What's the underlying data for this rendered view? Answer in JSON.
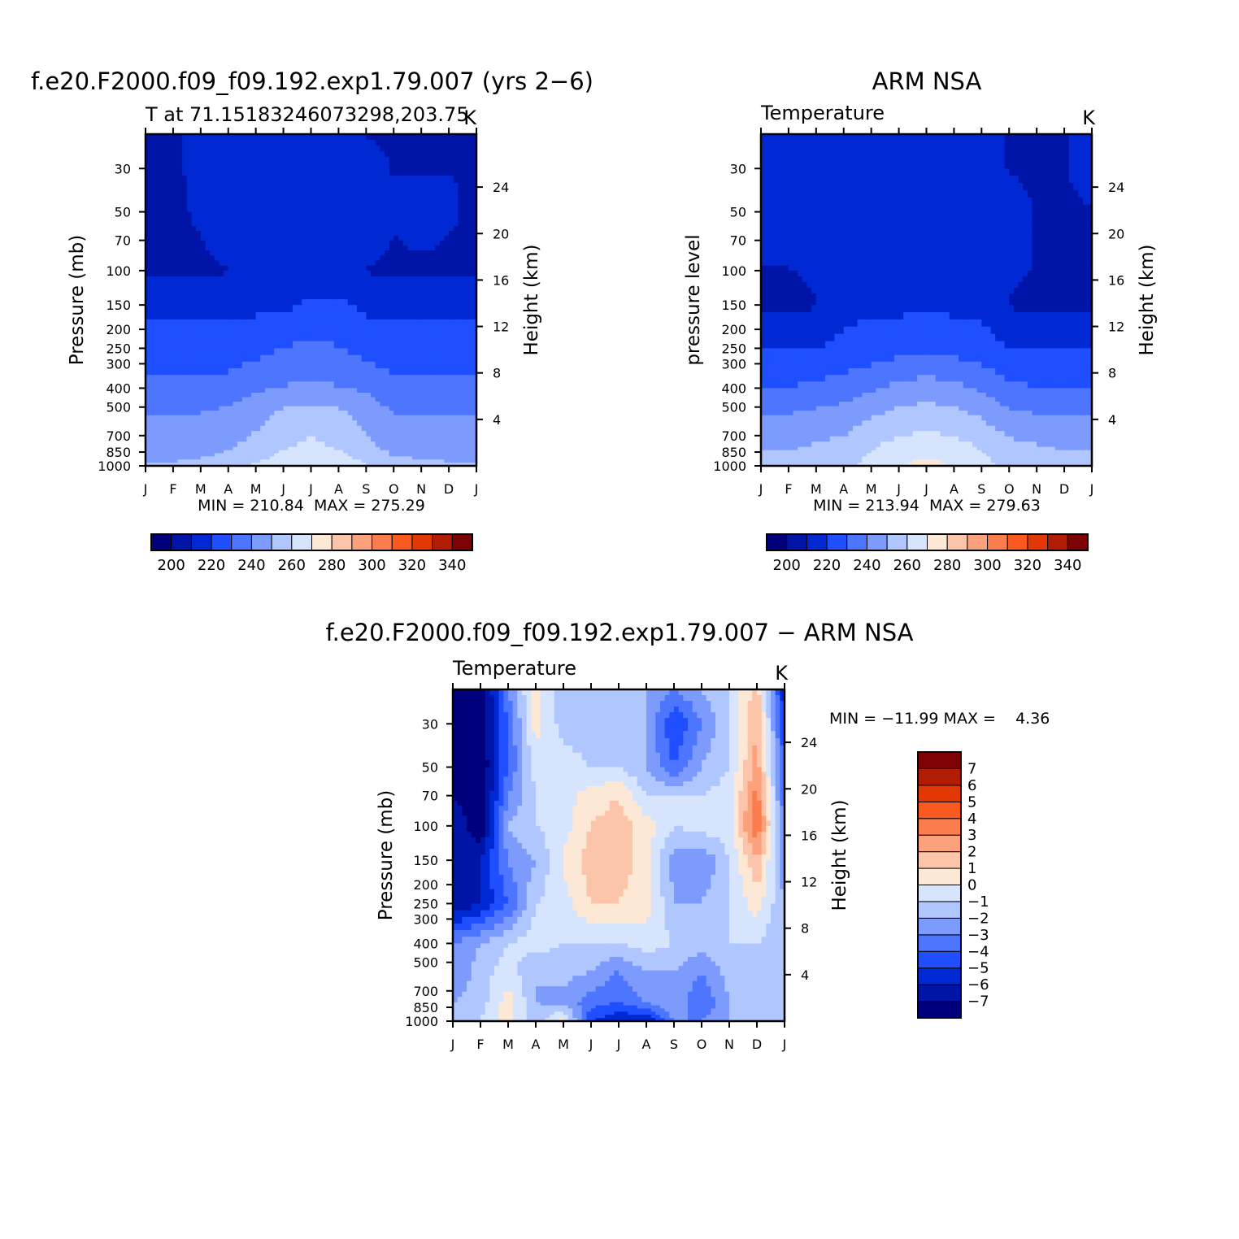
{
  "chart_data": [
    {
      "type": "heatmap",
      "title": "f.e20.F2000.f09_f09.192.exp1.79.007 (yrs 2−6)",
      "subtitle": "T at 71.15183246073298,203.75",
      "units": "K",
      "xlabel": "",
      "ylabel": "Pressure (mb)",
      "right_label": "Height (km)",
      "x_ticks": [
        "J",
        "F",
        "M",
        "A",
        "M",
        "J",
        "J",
        "A",
        "S",
        "O",
        "N",
        "D",
        "J"
      ],
      "y_ticks": [
        "30",
        "50",
        "70",
        "100",
        "150",
        "200",
        "250",
        "300",
        "400",
        "500",
        "700",
        "850",
        "1000"
      ],
      "right_ticks": [
        "24",
        "20",
        "16",
        "12",
        "8",
        "4"
      ],
      "ylim": [
        1000,
        20
      ],
      "y_scale": "log",
      "stats": "MIN = 210.84  MAX = 275.29",
      "colorbar": {
        "orientation": "horizontal",
        "labels": [
          "200",
          "220",
          "240",
          "260",
          "280",
          "300",
          "320",
          "340"
        ],
        "levels": [
          195,
          200,
          205,
          210,
          215,
          220,
          225,
          230,
          235,
          240,
          245,
          250,
          255,
          260,
          265,
          270,
          275,
          280,
          285,
          290,
          295,
          300,
          305,
          310,
          315,
          320,
          325,
          330,
          335,
          340,
          345,
          350
        ],
        "colors": [
          "#00007d",
          "#0015a8",
          "#0029d4",
          "#1f4fff",
          "#4e75fd",
          "#7d9bfc",
          "#b0c6fe",
          "#d6e5fd",
          "#fde8d6",
          "#fcc4a8",
          "#fba17c",
          "#fb7d4e",
          "#fa5a20",
          "#e23805",
          "#b01d04",
          "#7d0204"
        ]
      },
      "z_grid": [
        [
          212,
          212,
          218,
          218,
          218,
          218,
          218,
          218,
          214,
          214,
          214,
          214,
          214
        ],
        [
          212,
          212,
          218,
          218,
          218,
          218,
          218,
          218,
          216,
          214,
          214,
          214,
          214
        ],
        [
          212,
          212,
          216,
          218,
          218,
          218,
          218,
          218,
          218,
          216,
          218,
          216,
          212
        ],
        [
          212,
          212,
          214,
          218,
          218,
          218,
          218,
          218,
          218,
          214,
          216,
          214,
          212
        ],
        [
          212,
          212,
          212,
          214,
          218,
          218,
          218,
          218,
          214,
          212,
          212,
          212,
          212
        ],
        [
          222,
          222,
          222,
          222,
          222,
          222,
          226,
          226,
          222,
          222,
          222,
          222,
          222
        ],
        [
          228,
          228,
          228,
          228,
          230,
          234,
          236,
          234,
          230,
          228,
          228,
          228,
          228
        ],
        [
          236,
          236,
          236,
          238,
          242,
          244,
          246,
          244,
          242,
          236,
          236,
          236,
          236
        ],
        [
          244,
          244,
          244,
          246,
          250,
          256,
          258,
          256,
          250,
          244,
          244,
          244,
          244
        ],
        [
          250,
          250,
          250,
          252,
          256,
          262,
          265,
          262,
          256,
          250,
          250,
          250,
          250
        ],
        [
          254,
          254,
          255,
          258,
          264,
          268,
          270,
          268,
          264,
          256,
          255,
          254,
          254
        ]
      ],
      "z_levels_hpa": [
        20,
        30,
        50,
        70,
        100,
        150,
        250,
        400,
        550,
        800,
        1000
      ]
    },
    {
      "type": "heatmap",
      "title": "ARM NSA",
      "subtitle": "Temperature",
      "units": "K",
      "xlabel": "",
      "ylabel": "pressure level",
      "right_label": "Height (km)",
      "x_ticks": [
        "J",
        "F",
        "M",
        "A",
        "M",
        "J",
        "J",
        "A",
        "S",
        "O",
        "N",
        "D",
        "J"
      ],
      "y_ticks": [
        "30",
        "50",
        "70",
        "100",
        "150",
        "200",
        "250",
        "300",
        "400",
        "500",
        "700",
        "850",
        "1000"
      ],
      "right_ticks": [
        "24",
        "20",
        "16",
        "12",
        "8",
        "4"
      ],
      "ylim": [
        1000,
        20
      ],
      "y_scale": "log",
      "stats": "MIN = 213.94  MAX = 279.63",
      "colorbar": {
        "orientation": "horizontal",
        "labels": [
          "200",
          "220",
          "240",
          "260",
          "280",
          "300",
          "320",
          "340"
        ],
        "levels": [
          195,
          200,
          205,
          210,
          215,
          220,
          225,
          230,
          235,
          240,
          245,
          250,
          255,
          260,
          265,
          270,
          275,
          280,
          285,
          290,
          295,
          300,
          305,
          310,
          315,
          320,
          325,
          330,
          335,
          340,
          345,
          350
        ],
        "colors": [
          "#00007d",
          "#0015a8",
          "#0029d4",
          "#1f4fff",
          "#4e75fd",
          "#7d9bfc",
          "#b0c6fe",
          "#d6e5fd",
          "#fde8d6",
          "#fcc4a8",
          "#fba17c",
          "#fb7d4e",
          "#fa5a20",
          "#e23805",
          "#b01d04",
          "#7d0204"
        ]
      },
      "z_grid": [
        [
          218,
          218,
          218,
          218,
          218,
          218,
          218,
          218,
          218,
          214,
          214,
          214,
          218
        ],
        [
          218,
          218,
          218,
          218,
          218,
          218,
          218,
          218,
          218,
          214,
          214,
          214,
          216
        ],
        [
          218,
          218,
          218,
          218,
          218,
          218,
          218,
          218,
          218,
          216,
          214,
          214,
          214
        ],
        [
          218,
          218,
          218,
          218,
          218,
          218,
          218,
          218,
          218,
          218,
          214,
          214,
          214
        ],
        [
          214,
          214,
          216,
          218,
          218,
          218,
          218,
          218,
          218,
          216,
          214,
          214,
          214
        ],
        [
          212,
          212,
          214,
          222,
          222,
          222,
          222,
          222,
          222,
          214,
          212,
          212,
          212
        ],
        [
          224,
          224,
          224,
          226,
          228,
          230,
          232,
          230,
          228,
          224,
          224,
          224,
          224
        ],
        [
          234,
          234,
          236,
          238,
          242,
          246,
          248,
          246,
          242,
          236,
          234,
          234,
          234
        ],
        [
          244,
          244,
          246,
          248,
          252,
          256,
          258,
          256,
          252,
          246,
          244,
          244,
          244
        ],
        [
          252,
          252,
          254,
          256,
          262,
          266,
          268,
          266,
          262,
          256,
          254,
          252,
          252
        ],
        [
          258,
          258,
          258,
          260,
          266,
          272,
          276,
          272,
          266,
          260,
          258,
          258,
          258
        ]
      ],
      "z_levels_hpa": [
        20,
        30,
        50,
        70,
        100,
        150,
        250,
        400,
        550,
        800,
        1000
      ]
    },
    {
      "type": "heatmap",
      "title": "f.e20.F2000.f09_f09.192.exp1.79.007 − ARM NSA",
      "subtitle": "Temperature",
      "units": "K",
      "xlabel": "",
      "ylabel": "Pressure (mb)",
      "right_label": "Height (km)",
      "x_ticks": [
        "J",
        "F",
        "M",
        "A",
        "M",
        "J",
        "J",
        "A",
        "S",
        "O",
        "N",
        "D",
        "J"
      ],
      "y_ticks": [
        "30",
        "50",
        "70",
        "100",
        "150",
        "200",
        "250",
        "300",
        "400",
        "500",
        "700",
        "850",
        "1000"
      ],
      "right_ticks": [
        "24",
        "20",
        "16",
        "12",
        "8",
        "4"
      ],
      "ylim": [
        1000,
        20
      ],
      "y_scale": "log",
      "stats": "MIN = −11.99 MAX =    4.36",
      "colorbar": {
        "orientation": "vertical",
        "labels": [
          "7",
          "6",
          "5",
          "4",
          "3",
          "2",
          "1",
          "0",
          "−1",
          "−2",
          "−3",
          "−4",
          "−5",
          "−6",
          "−7"
        ],
        "levels": [
          -8,
          -7,
          -6,
          -5,
          -4,
          -3,
          -2,
          -1,
          0,
          1,
          2,
          3,
          4,
          5,
          6,
          7,
          8
        ],
        "colors": [
          "#00007d",
          "#0015a8",
          "#0029d4",
          "#1f4fff",
          "#4e75fd",
          "#7d9bfc",
          "#b0c6fe",
          "#d6e5fd",
          "#fde8d6",
          "#fcc4a8",
          "#fba17c",
          "#fb7d4e",
          "#fa5a20",
          "#e23805",
          "#b01d04",
          "#7d0204"
        ]
      },
      "z_grid": [
        [
          -8,
          -8,
          -3,
          0.5,
          -2,
          -2,
          -2,
          -2,
          -3,
          -2,
          -1,
          1.5,
          -6
        ],
        [
          -8,
          -8,
          -4,
          0.5,
          -1.5,
          -1.5,
          -1.5,
          -2,
          -5,
          -3,
          -1,
          2,
          -5
        ],
        [
          -8,
          -8,
          -4,
          -0.5,
          -0.5,
          -1,
          -1,
          -2,
          -4,
          -2,
          -1,
          2.5,
          -4
        ],
        [
          -7,
          -8,
          -3,
          -1,
          -0.5,
          0.5,
          1,
          -1,
          -1,
          -1,
          -0.5,
          3.5,
          -4
        ],
        [
          -6,
          -8,
          -2,
          -1,
          -0.5,
          1,
          1.5,
          0.5,
          -1,
          -0.5,
          -0.5,
          4,
          -3
        ],
        [
          -6,
          -6,
          -3,
          -2,
          0.2,
          1.5,
          1.5,
          0.5,
          -2.5,
          -3,
          -1,
          2,
          -3
        ],
        [
          -7,
          -6,
          -4,
          -1,
          -0.5,
          1,
          1,
          0.5,
          -2,
          -2,
          -1,
          0.5,
          -2
        ],
        [
          -3,
          -2,
          -1,
          -0.5,
          -1,
          -1,
          -1,
          -0.5,
          -1,
          -1.5,
          -1,
          -1,
          -2
        ],
        [
          -3,
          -1.5,
          -0.5,
          -2,
          -1.5,
          -2,
          -3,
          -2,
          -2,
          -3,
          -1.5,
          -2,
          -2
        ],
        [
          -2,
          -1.5,
          0.5,
          -2,
          -2.5,
          -3.5,
          -4,
          -3,
          -2,
          -4,
          -2,
          -2,
          -2
        ],
        [
          -1,
          -1,
          0.5,
          -1.5,
          0.5,
          -5,
          -6,
          -6,
          -3,
          -3,
          -2,
          -1,
          -1
        ]
      ],
      "z_levels_hpa": [
        20,
        30,
        50,
        70,
        100,
        150,
        250,
        400,
        550,
        800,
        1000
      ]
    }
  ]
}
